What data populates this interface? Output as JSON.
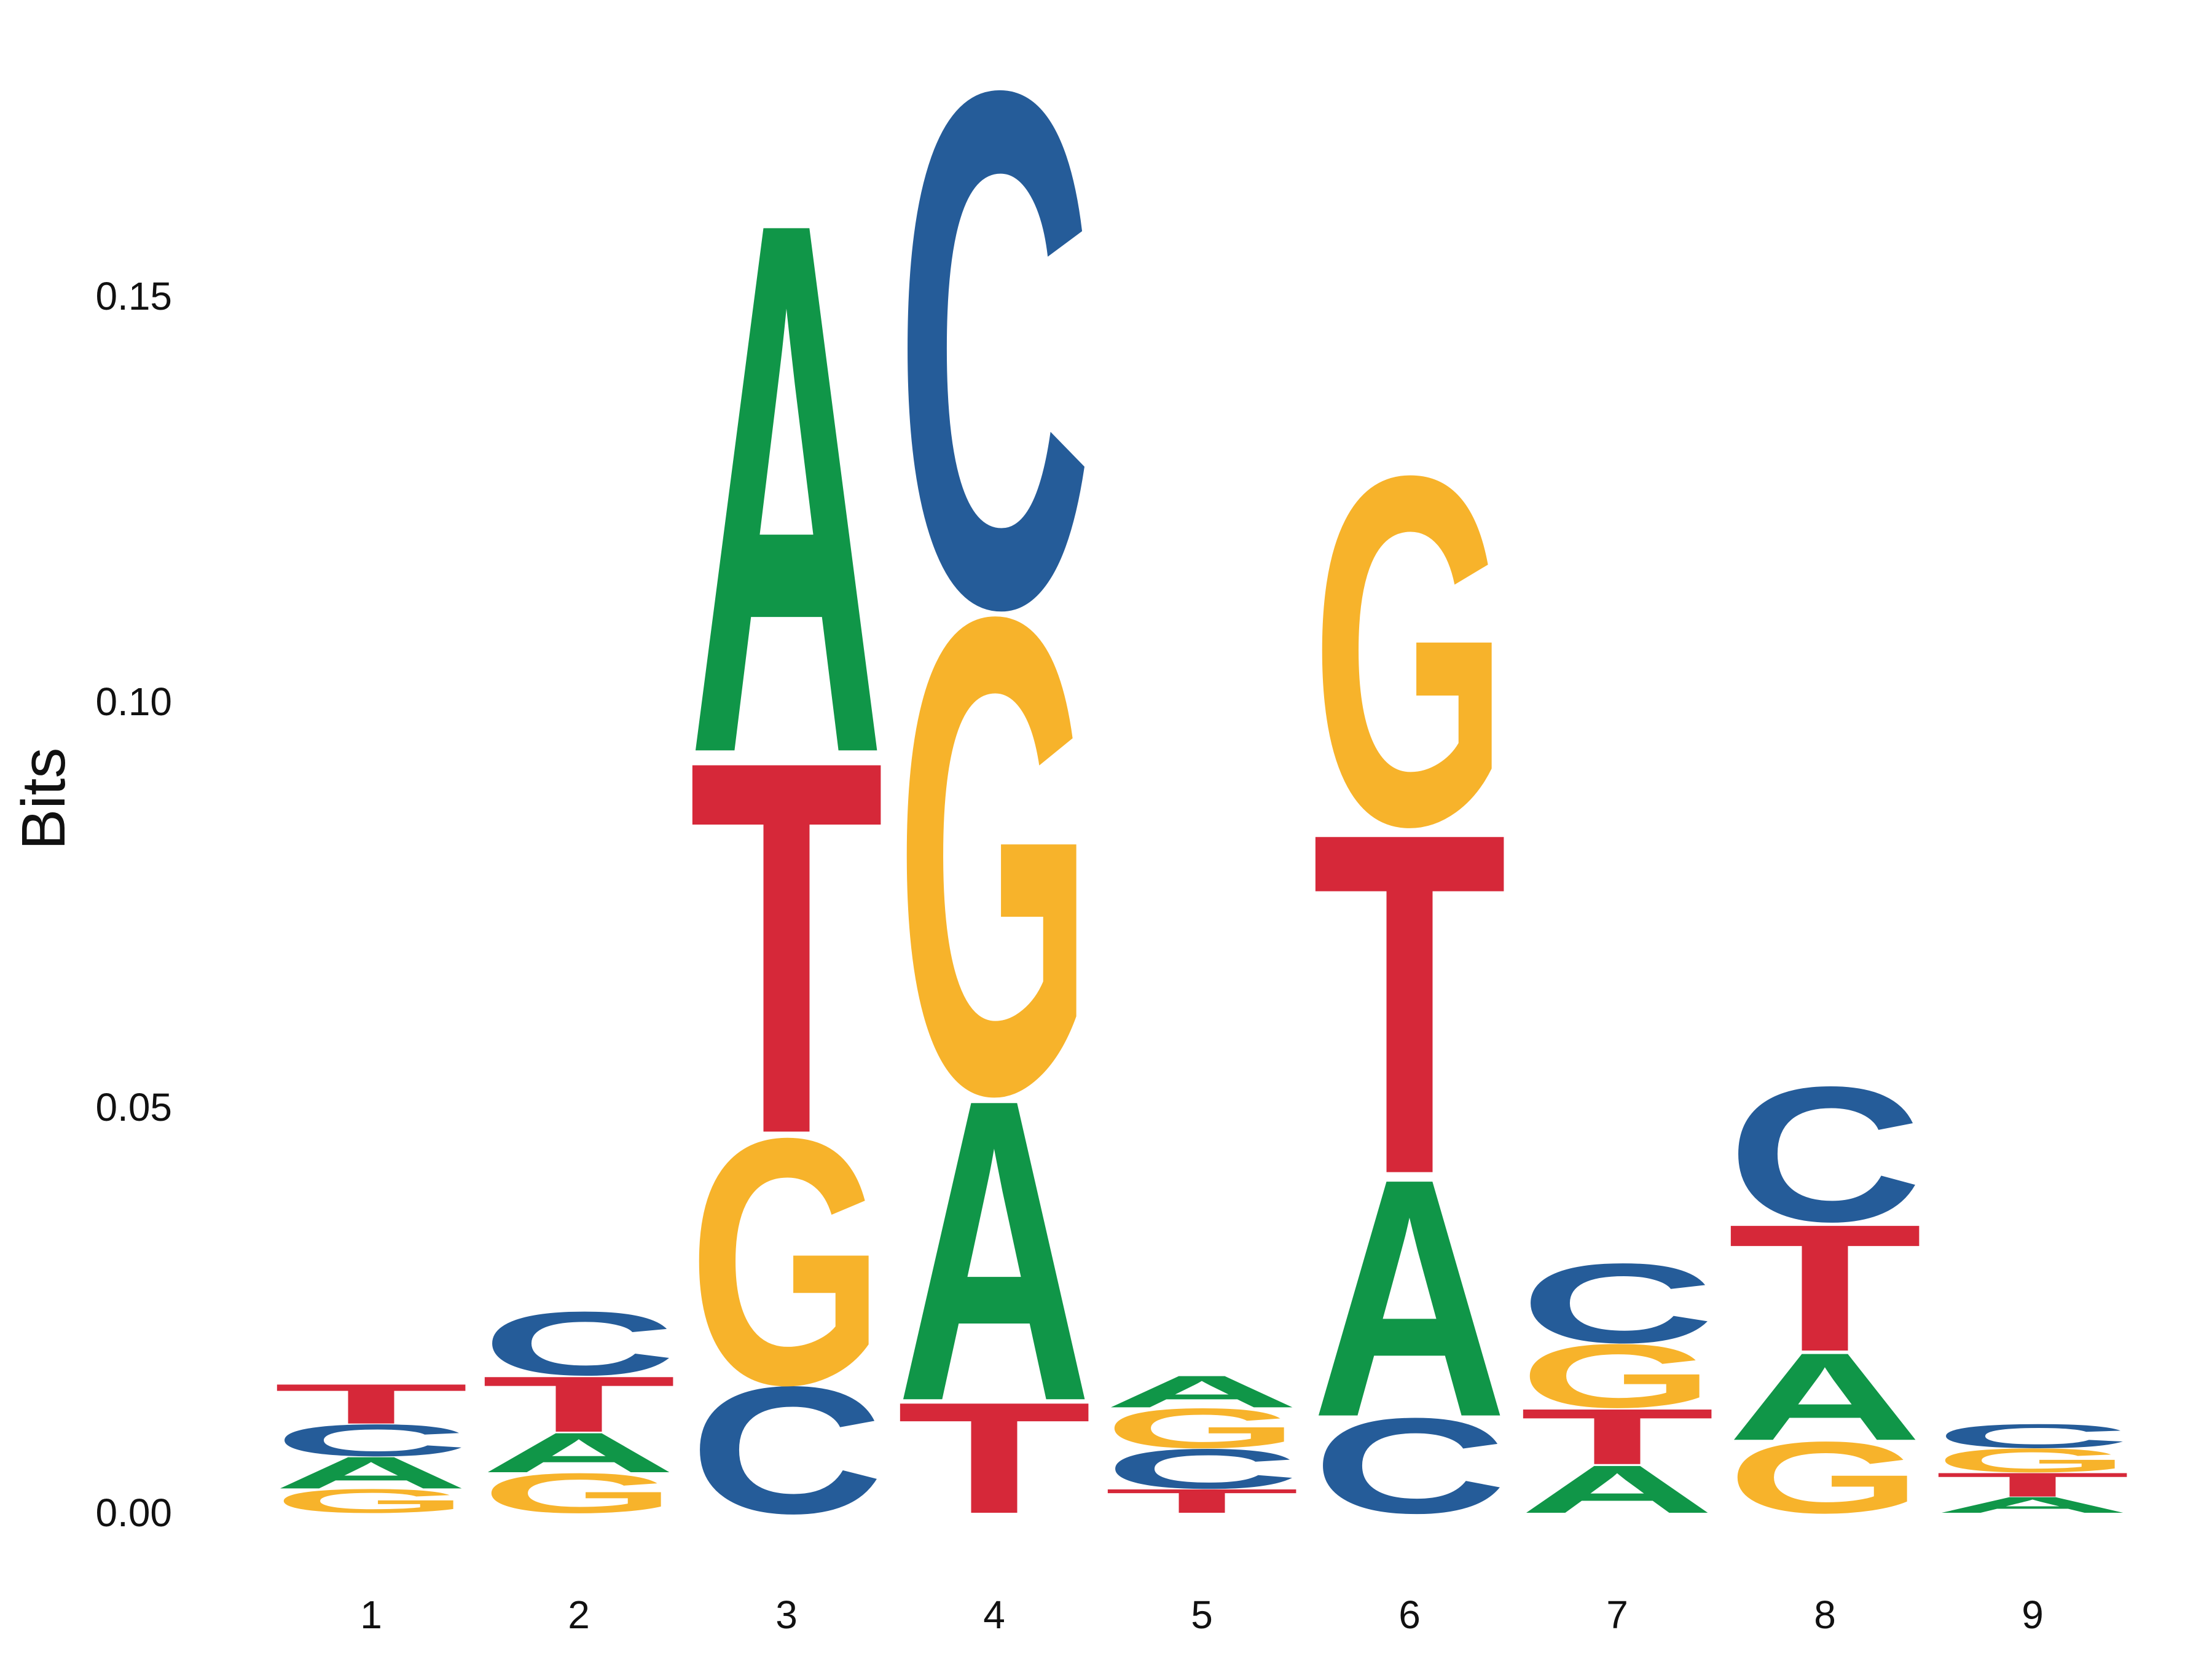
{
  "chart_data": {
    "type": "sequence-logo",
    "ylabel": "Bits",
    "ylim": [
      0,
      0.18
    ],
    "y_ticks": [
      "0.00",
      "0.05",
      "0.10",
      "0.15"
    ],
    "y_tick_values": [
      0,
      0.05,
      0.1,
      0.15
    ],
    "positions": [
      "1",
      "2",
      "3",
      "4",
      "5",
      "6",
      "7",
      "8",
      "9"
    ],
    "colors": {
      "A": "#109648",
      "C": "#255C99",
      "G": "#F7B32B",
      "T": "#D62839"
    },
    "stacks": [
      [
        {
          "letter": "G",
          "height": 0.003
        },
        {
          "letter": "A",
          "height": 0.004
        },
        {
          "letter": "C",
          "height": 0.004
        },
        {
          "letter": "T",
          "height": 0.005
        }
      ],
      [
        {
          "letter": "G",
          "height": 0.005
        },
        {
          "letter": "A",
          "height": 0.005
        },
        {
          "letter": "T",
          "height": 0.007
        },
        {
          "letter": "C",
          "height": 0.008
        }
      ],
      [
        {
          "letter": "C",
          "height": 0.016
        },
        {
          "letter": "G",
          "height": 0.031
        },
        {
          "letter": "T",
          "height": 0.047
        },
        {
          "letter": "A",
          "height": 0.067
        }
      ],
      [
        {
          "letter": "T",
          "height": 0.014
        },
        {
          "letter": "A",
          "height": 0.038
        },
        {
          "letter": "G",
          "height": 0.06
        },
        {
          "letter": "C",
          "height": 0.065
        }
      ],
      [
        {
          "letter": "T",
          "height": 0.003
        },
        {
          "letter": "C",
          "height": 0.005
        },
        {
          "letter": "G",
          "height": 0.005
        },
        {
          "letter": "A",
          "height": 0.004
        }
      ],
      [
        {
          "letter": "C",
          "height": 0.012
        },
        {
          "letter": "A",
          "height": 0.03
        },
        {
          "letter": "T",
          "height": 0.043
        },
        {
          "letter": "G",
          "height": 0.044
        }
      ],
      [
        {
          "letter": "A",
          "height": 0.006
        },
        {
          "letter": "T",
          "height": 0.007
        },
        {
          "letter": "G",
          "height": 0.008
        },
        {
          "letter": "C",
          "height": 0.01
        }
      ],
      [
        {
          "letter": "G",
          "height": 0.009
        },
        {
          "letter": "A",
          "height": 0.011
        },
        {
          "letter": "T",
          "height": 0.016
        },
        {
          "letter": "C",
          "height": 0.017
        }
      ],
      [
        {
          "letter": "A",
          "height": 0.002
        },
        {
          "letter": "T",
          "height": 0.003
        },
        {
          "letter": "G",
          "height": 0.003
        },
        {
          "letter": "C",
          "height": 0.003
        }
      ]
    ]
  }
}
